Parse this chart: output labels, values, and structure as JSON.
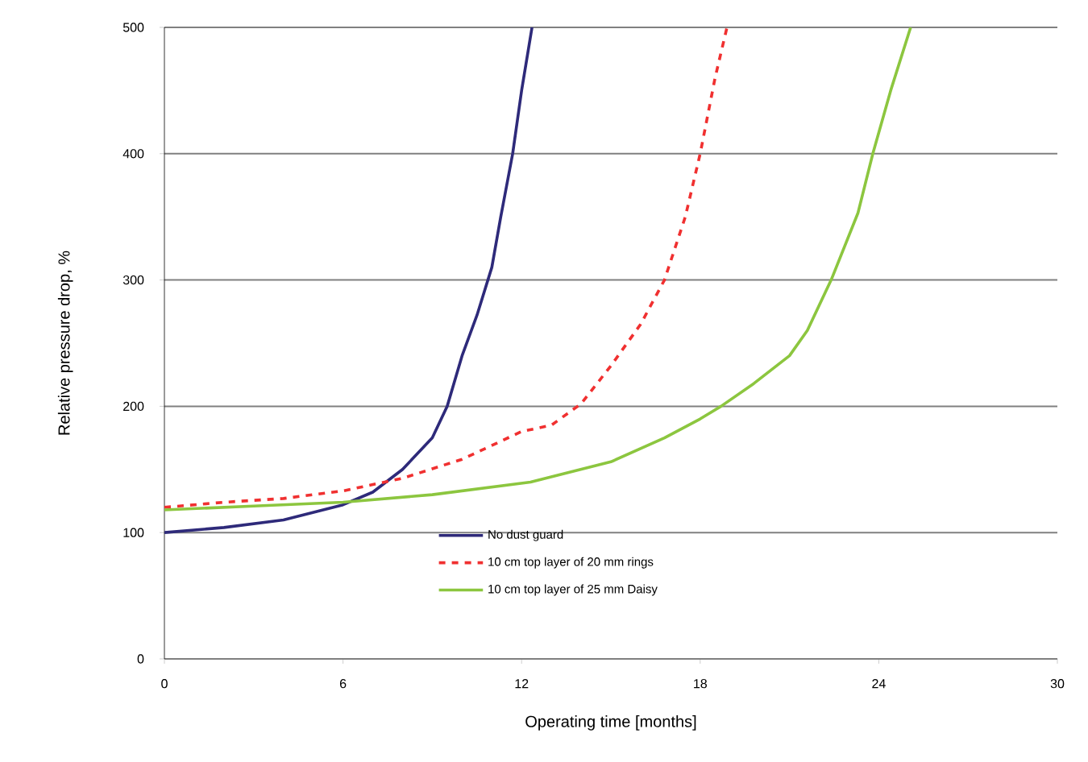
{
  "chart_data": {
    "type": "line",
    "xlabel": "Operating time [months]",
    "ylabel": "Relative pressure drop, %",
    "xlim": [
      0,
      30
    ],
    "xticks": [
      0,
      6,
      12,
      18,
      24,
      30
    ],
    "ylim": [
      0,
      500
    ],
    "yticks": [
      0,
      100,
      200,
      300,
      400,
      500
    ],
    "grid": "y",
    "legend": "bottom",
    "marker": "none",
    "series": [
      {
        "name": "No dust guard",
        "color": "#2e2a7a",
        "line_style": "solid",
        "x": [
          0,
          2,
          4,
          6,
          7,
          8,
          9,
          9.5,
          10,
          10.5,
          11,
          11.3,
          11.7,
          12,
          12.35
        ],
        "values": [
          100,
          104,
          110,
          122,
          132,
          150,
          175,
          200,
          240,
          272,
          310,
          350,
          400,
          450,
          500
        ]
      },
      {
        "name": "10 cm top layer of 20 mm rings",
        "color": "#f03030",
        "line_style": "dashed",
        "x": [
          0,
          2,
          4,
          6,
          8,
          10,
          12,
          13,
          14,
          15,
          16,
          16.8,
          17.5,
          18,
          18.5,
          18.9
        ],
        "values": [
          120,
          124,
          127,
          133,
          143,
          158,
          180,
          185,
          202,
          232,
          265,
          300,
          350,
          400,
          460,
          500
        ]
      },
      {
        "name": "10 cm top layer of 25 mm Daisy",
        "color": "#8cc63f",
        "line_style": "solid",
        "x": [
          0,
          3,
          6,
          9,
          12.3,
          15,
          16.8,
          18,
          18.7,
          19.8,
          21,
          21.6,
          22.4,
          23.3,
          23.8,
          24.4,
          25.07
        ],
        "values": [
          118,
          121,
          124,
          130,
          140,
          156,
          175,
          190,
          200,
          218,
          240,
          260,
          300,
          353,
          400,
          450,
          500
        ]
      }
    ]
  }
}
